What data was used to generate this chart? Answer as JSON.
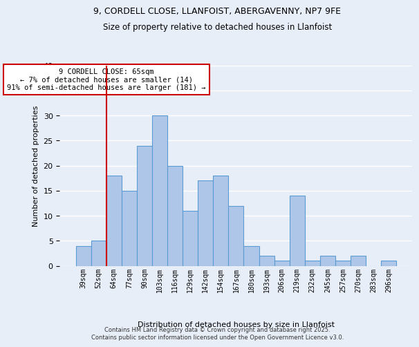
{
  "title_line1": "9, CORDELL CLOSE, LLANFOIST, ABERGAVENNY, NP7 9FE",
  "title_line2": "Size of property relative to detached houses in Llanfoist",
  "xlabel": "Distribution of detached houses by size in Llanfoist",
  "ylabel": "Number of detached properties",
  "footer_line1": "Contains HM Land Registry data © Crown copyright and database right 2025.",
  "footer_line2": "Contains public sector information licensed under the Open Government Licence v3.0.",
  "bar_labels": [
    "39sqm",
    "52sqm",
    "64sqm",
    "77sqm",
    "90sqm",
    "103sqm",
    "116sqm",
    "129sqm",
    "142sqm",
    "154sqm",
    "167sqm",
    "180sqm",
    "193sqm",
    "206sqm",
    "219sqm",
    "232sqm",
    "245sqm",
    "257sqm",
    "270sqm",
    "283sqm",
    "296sqm"
  ],
  "bar_values": [
    4,
    5,
    18,
    15,
    24,
    30,
    20,
    11,
    17,
    18,
    12,
    4,
    2,
    1,
    14,
    1,
    2,
    1,
    2,
    0,
    1
  ],
  "bar_color": "#aec6e8",
  "bar_edge_color": "#5b9bd5",
  "bg_color": "#e8eef8",
  "grid_color": "#ffffff",
  "vline_color": "#cc0000",
  "annotation_text": "9 CORDELL CLOSE: 65sqm\n← 7% of detached houses are smaller (14)\n91% of semi-detached houses are larger (181) →",
  "annotation_box_color": "#ffffff",
  "annotation_box_edge_color": "#cc0000",
  "ylim": [
    0,
    40
  ],
  "yticks": [
    0,
    5,
    10,
    15,
    20,
    25,
    30,
    35,
    40
  ]
}
